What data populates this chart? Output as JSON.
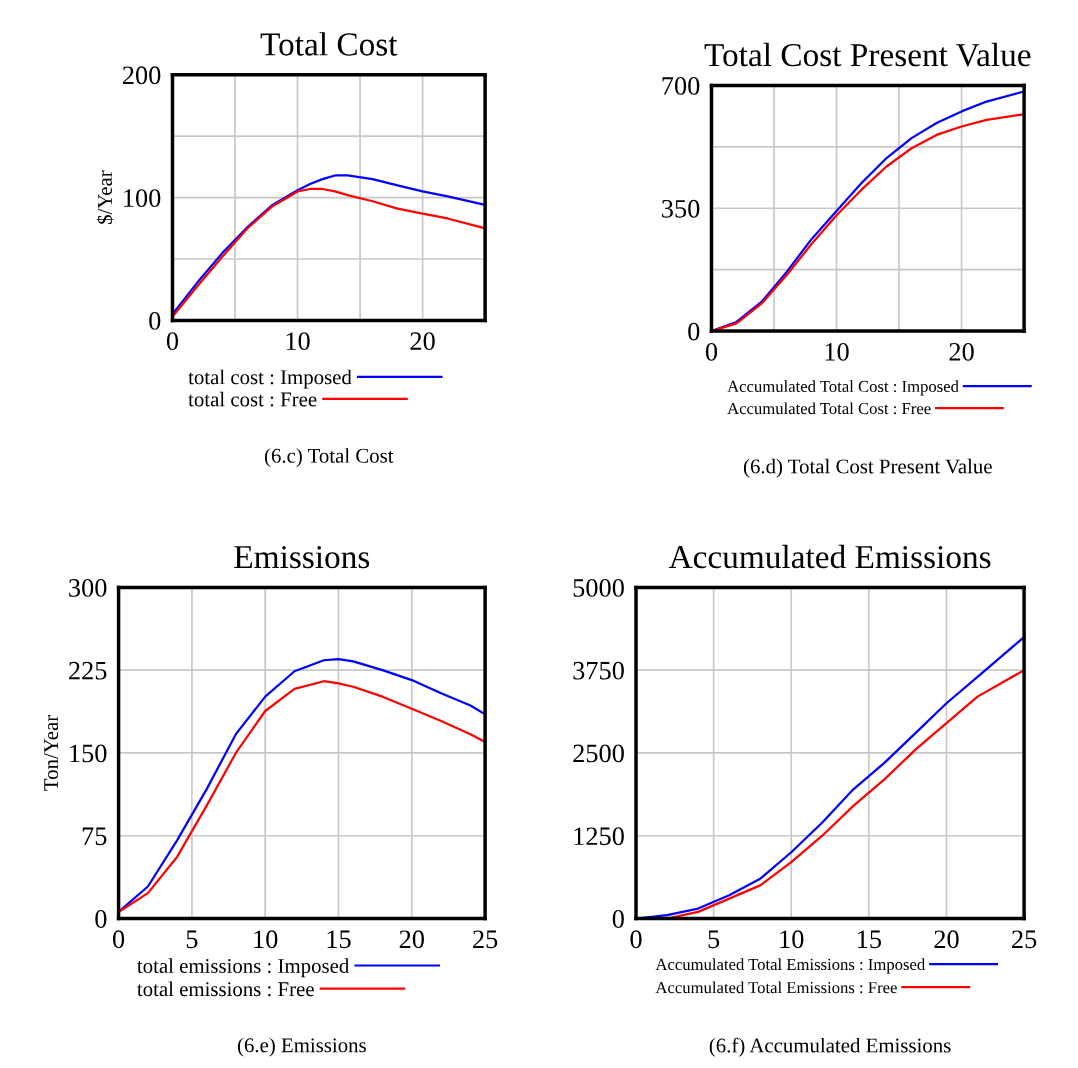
{
  "chart_data": [
    {
      "type": "line",
      "title": "Total Cost",
      "ylabel": "$/Year",
      "xlim": [
        0,
        25
      ],
      "ylim": [
        0,
        200
      ],
      "xticks": [
        0,
        {
          "value": 5,
          "label": null
        },
        10,
        {
          "value": 15,
          "label": null
        },
        20,
        {
          "value": 25,
          "label": null
        }
      ],
      "yticks": [
        0,
        {
          "value": 50,
          "label": null
        },
        100,
        {
          "value": 150,
          "label": null
        },
        200
      ],
      "grid": true,
      "legend": "bottom",
      "marker": "none",
      "line_style": "solid",
      "x": [
        0,
        2,
        4,
        6,
        8,
        10,
        11,
        12,
        13,
        14,
        16,
        18,
        20,
        22,
        25
      ],
      "series": [
        {
          "name": "total cost : Imposed",
          "color": "#0000ff",
          "values": [
            5,
            31,
            55,
            76,
            94,
            106,
            111,
            115,
            118,
            118,
            115,
            110,
            105,
            101,
            94
          ]
        },
        {
          "name": "total cost : Free",
          "color": "#ff0000",
          "values": [
            3,
            28,
            52,
            75,
            93,
            105,
            107,
            107,
            105,
            102,
            97,
            91,
            87,
            83,
            75
          ]
        }
      ],
      "annotations": [
        "(6.c) Total Cost"
      ]
    },
    {
      "type": "line",
      "title": "Total Cost Present Value",
      "xlim": [
        0,
        25
      ],
      "ylim": [
        0,
        700
      ],
      "xticks": [
        0,
        {
          "value": 5,
          "label": null
        },
        10,
        {
          "value": 15,
          "label": null
        },
        20,
        {
          "value": 25,
          "label": null
        }
      ],
      "yticks": [
        0,
        {
          "value": 175,
          "label": null
        },
        350,
        {
          "value": 525,
          "label": null
        },
        700
      ],
      "grid": true,
      "legend": "bottom",
      "marker": "none",
      "line_style": "solid",
      "x": [
        0,
        2,
        4,
        6,
        8,
        10,
        12,
        14,
        16,
        18,
        20,
        22,
        25
      ],
      "series": [
        {
          "name": "Accumulated Total Cost : Imposed",
          "color": "#0000ff",
          "values": [
            0,
            26,
            83,
            168,
            262,
            342,
            422,
            493,
            550,
            593,
            626,
            654,
            683
          ]
        },
        {
          "name": "Accumulated Total Cost : Free",
          "color": "#ff0000",
          "values": [
            0,
            22,
            78,
            159,
            248,
            330,
            403,
            469,
            521,
            559,
            583,
            602,
            618
          ]
        }
      ],
      "annotations": [
        "(6.d) Total Cost Present Value"
      ]
    },
    {
      "type": "line",
      "title": "Emissions",
      "ylabel": "Ton/Year",
      "xlim": [
        0,
        25
      ],
      "ylim": [
        0,
        300
      ],
      "xticks": [
        0,
        5,
        10,
        15,
        20,
        25
      ],
      "yticks": [
        0,
        75,
        150,
        225,
        300
      ],
      "grid": true,
      "legend": "bottom",
      "marker": "none",
      "line_style": "solid",
      "x": [
        0,
        2,
        4,
        6,
        8,
        10,
        12,
        14,
        15,
        16,
        18,
        20,
        22,
        24,
        25
      ],
      "series": [
        {
          "name": "total emissions : Imposed",
          "color": "#0000ff",
          "values": [
            6,
            29,
            71,
            117,
            167,
            201,
            224,
            234,
            235,
            233,
            225,
            216,
            204,
            193,
            185
          ]
        },
        {
          "name": "total emissions : Free",
          "color": "#ff0000",
          "values": [
            6,
            23,
            56,
            102,
            150,
            188,
            208,
            215,
            213,
            210,
            201,
            190,
            179,
            167,
            160
          ]
        }
      ],
      "annotations": [
        "(6.e) Emissions"
      ]
    },
    {
      "type": "line",
      "title": "Accumulated Emissions",
      "xlim": [
        0,
        25
      ],
      "ylim": [
        0,
        5000
      ],
      "xticks": [
        0,
        5,
        10,
        15,
        20,
        25
      ],
      "yticks": [
        0,
        1250,
        2500,
        3750,
        5000
      ],
      "grid": true,
      "legend": "bottom",
      "marker": "none",
      "line_style": "solid",
      "x": [
        0,
        2,
        4,
        6,
        8,
        10,
        12,
        14,
        16,
        18,
        20,
        22,
        25
      ],
      "series": [
        {
          "name": "Accumulated Total Emissions : Imposed",
          "color": "#0000ff",
          "values": [
            0,
            50,
            150,
            350,
            600,
            1000,
            1450,
            1950,
            2350,
            2800,
            3250,
            3650,
            4250
          ]
        },
        {
          "name": "Accumulated Total Emissions : Free",
          "color": "#ff0000",
          "values": [
            0,
            0,
            100,
            300,
            500,
            850,
            1250,
            1700,
            2100,
            2550,
            2950,
            3350,
            3750
          ]
        }
      ],
      "annotations": [
        "(6.f) Accumulated Emissions"
      ]
    }
  ]
}
